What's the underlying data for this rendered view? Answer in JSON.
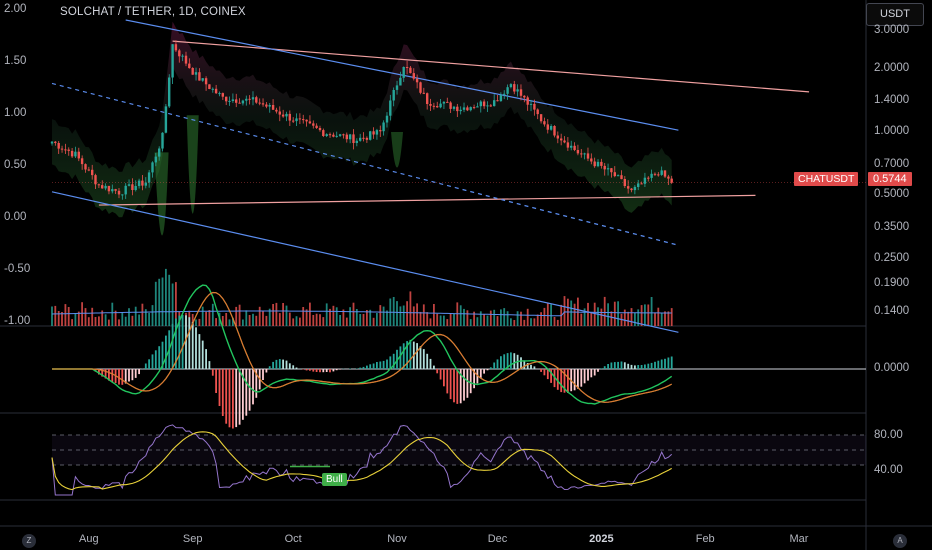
{
  "title": "SOLCHAT / TETHER, 1D, COINEX",
  "currency": "USDT",
  "symbol_badge": "CHATUSDT",
  "last_price": "0.5744",
  "left_axis_ticks": [
    "2.00",
    "1.50",
    "1.00",
    "0.50",
    "0.00",
    "-0.50",
    "-1.00"
  ],
  "right_axis_ticks": [
    "3.0000",
    "2.0000",
    "1.4000",
    "1.0000",
    "0.7000",
    "0.5000",
    "0.3500",
    "0.2500",
    "0.1900",
    "0.1400"
  ],
  "macd_axis_ticks": [
    "0.0000"
  ],
  "rsi_axis_ticks": [
    "80.00",
    "40.00"
  ],
  "time_axis_ticks": [
    "Aug",
    "Sep",
    "Oct",
    "Nov",
    "Dec",
    "2025",
    "Feb",
    "Mar"
  ],
  "bull_label": "Bull",
  "corner_buttons": {
    "left": "Z",
    "right": "A"
  },
  "colors": {
    "up": "#26a69a",
    "down": "#ef5350",
    "channel": "#5b8def",
    "resistance": "#f0a0a0",
    "bull": "#3fae48"
  },
  "chart_data": {
    "type": "candlestick",
    "title": "SOLCHAT / TETHER, 1D, COINEX",
    "y_scale": "log",
    "ylim": [
      0.12,
      3.4
    ],
    "x_range": [
      "2024-07-21",
      "2025-03-21"
    ],
    "close_series": [
      {
        "date": "2024-07-21",
        "value": 0.9
      },
      {
        "date": "2024-07-28",
        "value": 0.78
      },
      {
        "date": "2024-08-04",
        "value": 0.56
      },
      {
        "date": "2024-08-10",
        "value": 0.52
      },
      {
        "date": "2024-08-18",
        "value": 0.58
      },
      {
        "date": "2024-08-23",
        "value": 0.95
      },
      {
        "date": "2024-08-26",
        "value": 2.6
      },
      {
        "date": "2024-09-02",
        "value": 1.85
      },
      {
        "date": "2024-09-10",
        "value": 1.45
      },
      {
        "date": "2024-09-20",
        "value": 1.4
      },
      {
        "date": "2024-10-01",
        "value": 1.15
      },
      {
        "date": "2024-10-10",
        "value": 1.0
      },
      {
        "date": "2024-10-20",
        "value": 0.92
      },
      {
        "date": "2024-10-27",
        "value": 1.0
      },
      {
        "date": "2024-11-03",
        "value": 2.1
      },
      {
        "date": "2024-11-10",
        "value": 1.4
      },
      {
        "date": "2024-11-20",
        "value": 1.3
      },
      {
        "date": "2024-11-30",
        "value": 1.4
      },
      {
        "date": "2024-12-05",
        "value": 1.7
      },
      {
        "date": "2024-12-15",
        "value": 1.1
      },
      {
        "date": "2024-12-25",
        "value": 0.8
      },
      {
        "date": "2025-01-05",
        "value": 0.62
      },
      {
        "date": "2025-01-10",
        "value": 0.52
      },
      {
        "date": "2025-01-18",
        "value": 0.65
      },
      {
        "date": "2025-01-22",
        "value": 0.5744
      }
    ],
    "trendlines": [
      {
        "name": "resistance",
        "color": "#f0a0a0",
        "points": [
          [
            "2024-08-26",
            2.7
          ],
          [
            "2025-03-04",
            1.55
          ]
        ]
      },
      {
        "name": "support",
        "color": "#f0a0a0",
        "points": [
          [
            "2024-08-04",
            0.45
          ],
          [
            "2025-02-16",
            0.5
          ]
        ]
      },
      {
        "name": "channel-upper",
        "color": "#5b8def",
        "points": [
          [
            "2024-08-12",
            3.4
          ],
          [
            "2025-01-24",
            1.02
          ]
        ]
      },
      {
        "name": "channel-lower",
        "color": "#5b8def",
        "points": [
          [
            "2024-07-21",
            0.52
          ],
          [
            "2025-01-24",
            0.112
          ]
        ]
      },
      {
        "name": "channel-mid",
        "color": "#5b8def",
        "dashed": true,
        "points": [
          [
            "2024-07-21",
            1.7
          ],
          [
            "2025-01-24",
            0.29
          ]
        ]
      }
    ],
    "macd": {
      "zero_line": 0.0
    },
    "rsi": {
      "upper": 80,
      "middle": 60,
      "lower": 40
    }
  }
}
